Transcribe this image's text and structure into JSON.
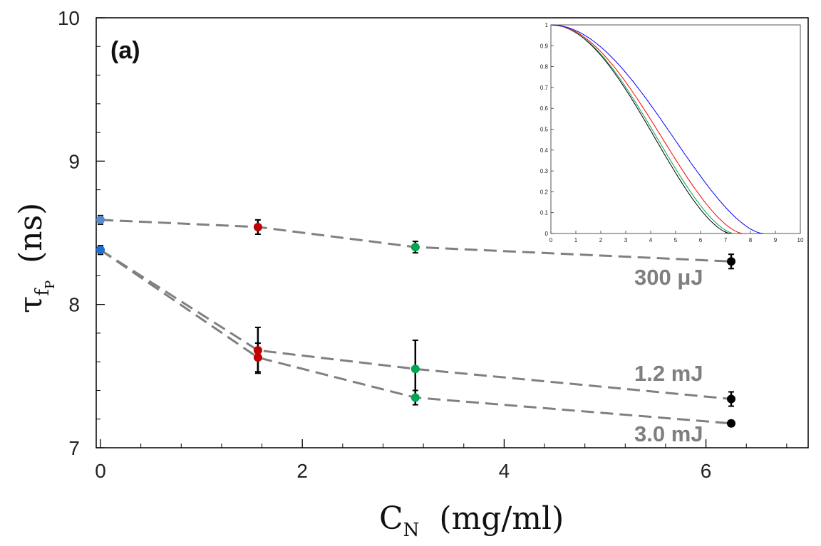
{
  "chart_data": {
    "type": "line",
    "title": "",
    "panel_label": "(a)",
    "xlabel": {
      "symbol": "C",
      "subscript": "N",
      "units": "(mg/ml)"
    },
    "ylabel": {
      "symbol": "τ",
      "subscript": "f",
      "subsubscript": "P",
      "units": "(ns)"
    },
    "xlim": [
      0,
      7
    ],
    "ylim": [
      7,
      10
    ],
    "xticks": [
      "0",
      "2",
      "4",
      "6"
    ],
    "yticks": [
      "7",
      "8",
      "9",
      "10"
    ],
    "series": [
      {
        "name": "300 μJ",
        "x": [
          0,
          1.56,
          3.12,
          6.25
        ],
        "y": [
          8.59,
          8.54,
          8.4,
          8.3
        ],
        "err": [
          0.03,
          0.05,
          0.04,
          0.05
        ],
        "colors": [
          "#5b8bc9",
          "#c00000",
          "#00a550",
          "#000000"
        ]
      },
      {
        "name": "1.2 mJ",
        "x": [
          0,
          1.56,
          3.12,
          6.25
        ],
        "y": [
          8.38,
          7.68,
          7.55,
          7.34
        ],
        "err": [
          0.03,
          0.16,
          0.2,
          0.05
        ],
        "colors": [
          "#1f6fd1",
          "#c00000",
          "#00a550",
          "#000000"
        ]
      },
      {
        "name": "3.0 mJ",
        "x": [
          0,
          1.56,
          3.12,
          6.25
        ],
        "y": [
          8.38,
          7.63,
          7.35,
          7.17
        ],
        "err": [
          0.03,
          0.1,
          0.05,
          0.02
        ],
        "colors": [
          "#1f6fd1",
          "#c00000",
          "#00a550",
          "#000000"
        ]
      }
    ],
    "inset": {
      "xlim": [
        0,
        10
      ],
      "ylim": [
        0,
        1
      ],
      "xticks": [
        "0",
        "1",
        "2",
        "3",
        "4",
        "5",
        "6",
        "7",
        "8",
        "9",
        "10"
      ],
      "yticks": [
        "0",
        "0.1",
        "0.2",
        "0.3",
        "0.4",
        "0.5",
        "0.6",
        "0.7",
        "0.8",
        "0.9",
        "1"
      ],
      "curves": [
        {
          "color": "#000000",
          "end": 7.2
        },
        {
          "color": "#00a550",
          "end": 7.35
        },
        {
          "color": "#ff0000",
          "end": 7.7
        },
        {
          "color": "#0000ff",
          "end": 8.5
        }
      ]
    }
  }
}
